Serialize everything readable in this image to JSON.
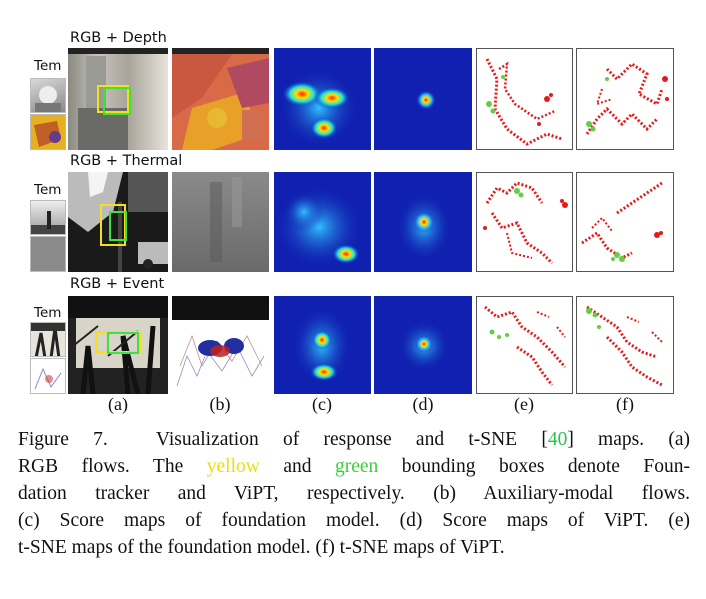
{
  "rows": [
    {
      "title": "RGB + Depth",
      "tem_label": "Tem"
    },
    {
      "title": "RGB + Thermal",
      "tem_label": "Tem"
    },
    {
      "title": "RGB + Event",
      "tem_label": "Tem"
    }
  ],
  "column_labels": [
    "(a)",
    "(b)",
    "(c)",
    "(d)",
    "(e)",
    "(f)"
  ],
  "caption": {
    "figure_label": "Figure 7.",
    "line1_text": "Visualization of response and t-SNE [",
    "ref_number": "40",
    "line1_end": "] maps.  (a)",
    "line2_start": "RGB flows.  The ",
    "word_yellow": "yellow",
    "and": " and ",
    "word_green": "green",
    "line2_end": " bounding boxes denote Foun-",
    "line3": "dation tracker and ViPT, respectively.  (b) Auxiliary-modal flows.",
    "line4": "(c) Score maps of foundation model.  (d) Score maps of ViPT.  (e)",
    "line5": "t-SNE maps of the foundation model.  (f) t-SNE maps of ViPT."
  },
  "colors": {
    "yellow_box": "#f0e020",
    "green_box": "#40e040",
    "heatmap_bg": "#1020b0",
    "tsne_red": "#e81818",
    "tsne_green": "#60d040"
  }
}
